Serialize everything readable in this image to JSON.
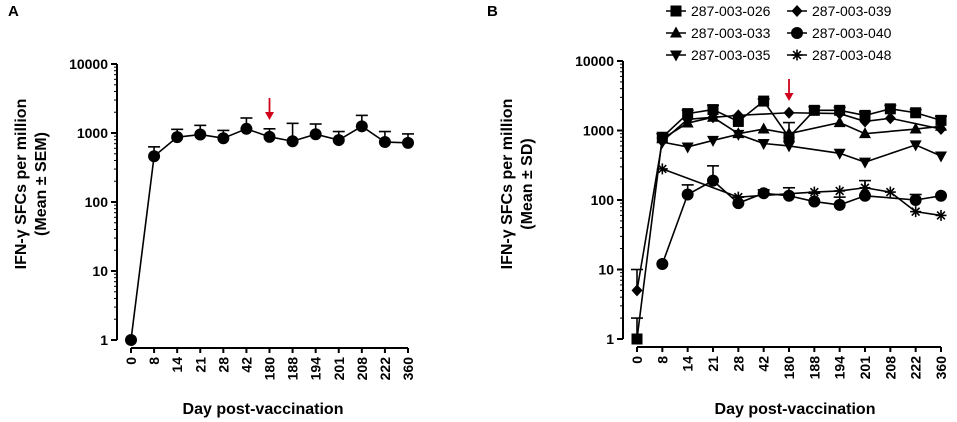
{
  "figure": {
    "panel_a_label": "A",
    "panel_b_label": "B"
  },
  "chart_data": [
    {
      "panel": "A",
      "type": "line",
      "yscale": "log",
      "ylim": [
        1,
        10000
      ],
      "yticks": [
        1,
        10,
        100,
        1000,
        10000
      ],
      "ytick_labels": [
        "1",
        "10",
        "100",
        "1000",
        "10000"
      ],
      "categories": [
        "0",
        "8",
        "14",
        "21",
        "28",
        "42",
        "180",
        "188",
        "194",
        "201",
        "208",
        "222",
        "360"
      ],
      "xlabel": "Day post-vaccination",
      "ylabel_line1": "IFN-γ SFCs per million",
      "ylabel_line2": "(Mean ± SEM)",
      "arrow_at": "180",
      "arrow_color": "#d0021b",
      "series": [
        {
          "name": "Mean",
          "marker": "circle",
          "values": [
            1,
            460,
            870,
            950,
            840,
            1150,
            880,
            760,
            960,
            790,
            1250,
            740,
            720
          ],
          "errors": [
            0,
            630,
            1130,
            1290,
            1090,
            1650,
            1150,
            1380,
            1350,
            1050,
            1800,
            1050,
            970
          ]
        }
      ]
    },
    {
      "panel": "B",
      "type": "line",
      "yscale": "log",
      "ylim": [
        1,
        10000
      ],
      "yticks": [
        1,
        10,
        100,
        1000,
        10000
      ],
      "ytick_labels": [
        "1",
        "10",
        "100",
        "1000",
        "10000"
      ],
      "categories": [
        "0",
        "8",
        "14",
        "21",
        "28",
        "42",
        "180",
        "188",
        "194",
        "201",
        "208",
        "222",
        "360"
      ],
      "xlabel": "Day post-vaccination",
      "ylabel_line1": "IFN-γ SFCs per million",
      "ylabel_line2": "(Mean ± SD)",
      "arrow_at": "180",
      "arrow_color": "#d0021b",
      "series": [
        {
          "name": "287-003-026",
          "marker": "square",
          "values": [
            1,
            800,
            1750,
            2000,
            1350,
            2650,
            800,
            1950,
            1950,
            1650,
            2050,
            1800,
            1400
          ],
          "errors": [
            2,
            900,
            1950,
            2300,
            1650,
            2850,
            1300,
            2200,
            2150,
            1850,
            2300,
            2000,
            1600
          ]
        },
        {
          "name": "287-003-033",
          "marker": "triangle-up",
          "values": [
            null,
            760,
            1280,
            1550,
            900,
            1050,
            900,
            null,
            1300,
            900,
            null,
            1050,
            1150
          ],
          "errors": []
        },
        {
          "name": "287-003-035",
          "marker": "triangle-down",
          "values": [
            null,
            680,
            580,
            720,
            880,
            650,
            600,
            null,
            470,
            350,
            null,
            620,
            430
          ],
          "errors": []
        },
        {
          "name": "287-003-039",
          "marker": "diamond",
          "values": [
            5,
            700,
            1450,
            1550,
            1650,
            null,
            1800,
            null,
            1750,
            1350,
            1500,
            null,
            1050
          ],
          "errors": [
            10
          ]
        },
        {
          "name": "287-003-040",
          "marker": "circle",
          "values": [
            null,
            12,
            120,
            190,
            90,
            125,
            115,
            95,
            85,
            115,
            null,
            100,
            115
          ],
          "errors": [
            null,
            null,
            165,
            310,
            110,
            140,
            150,
            125,
            110,
            190,
            null,
            120,
            null
          ]
        },
        {
          "name": "287-003-048",
          "marker": "asterisk",
          "values": [
            null,
            280,
            null,
            null,
            110,
            null,
            null,
            130,
            135,
            150,
            130,
            68,
            60
          ],
          "errors": []
        }
      ]
    }
  ]
}
